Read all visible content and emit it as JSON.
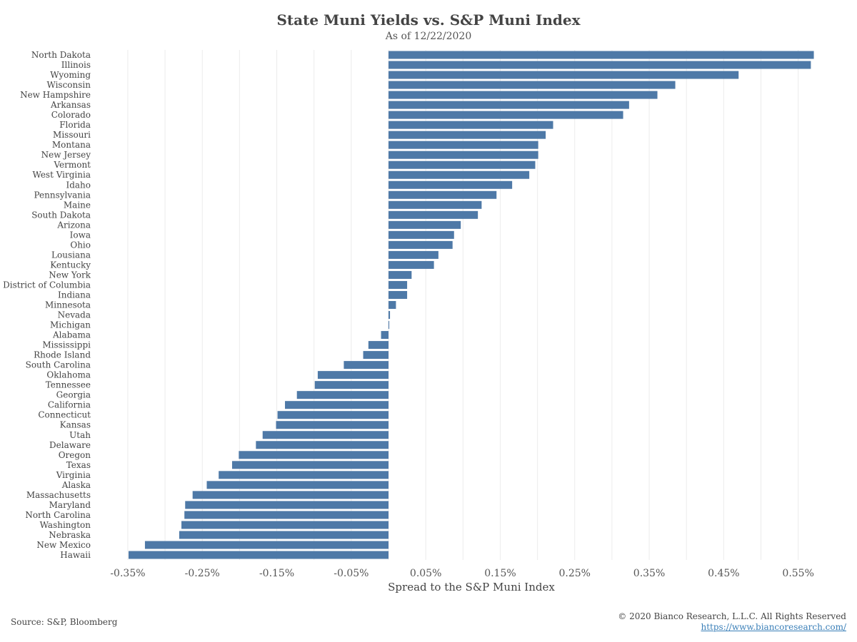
{
  "chart_data": {
    "type": "bar",
    "orientation": "horizontal",
    "title": "State Muni Yields vs. S&P Muni Index",
    "subtitle": "As of 12/22/2020",
    "xlabel": "Spread to the S&P Muni Index",
    "ylabel": "",
    "xlim": [
      -0.38,
      0.6
    ],
    "x_ticks": [
      -0.35,
      -0.25,
      -0.15,
      -0.05,
      0.05,
      0.15,
      0.25,
      0.35,
      0.45,
      0.55
    ],
    "x_tick_labels": [
      "-0.35%",
      "-0.25%",
      "-0.15%",
      "-0.05%",
      "0.05%",
      "0.15%",
      "0.25%",
      "0.35%",
      "0.45%",
      "0.55%"
    ],
    "grid": "vertical",
    "bar_color": "#4e79a7",
    "categories": [
      "North Dakota",
      "Illinois",
      "Wyoming",
      "Wisconsin",
      "New Hampshire",
      "Arkansas",
      "Colorado",
      "Florida",
      "Missouri",
      "Montana",
      "New Jersey",
      "Vermont",
      "West Virginia",
      "Idaho",
      "Pennsylvania",
      "Maine",
      "South Dakota",
      "Arizona",
      "Iowa",
      "Ohio",
      "Lousiana",
      "Kentucky",
      "New York",
      "District of Columbia",
      "Indiana",
      "Minnesota",
      "Nevada",
      "Michigan",
      "Alabama",
      "Mississippi",
      "Rhode Island",
      "South Carolina",
      "Oklahoma",
      "Tennessee",
      "Georgia",
      "California",
      "Connecticut",
      "Kansas",
      "Utah",
      "Delaware",
      "Oregon",
      "Texas",
      "Virginia",
      "Alaska",
      "Massachusetts",
      "Maryland",
      "North Carolina",
      "Washington",
      "Nebraska",
      "New Mexico",
      "Hawaii"
    ],
    "values": [
      0.571,
      0.567,
      0.47,
      0.385,
      0.361,
      0.323,
      0.315,
      0.221,
      0.211,
      0.201,
      0.201,
      0.197,
      0.189,
      0.166,
      0.145,
      0.125,
      0.12,
      0.097,
      0.088,
      0.086,
      0.067,
      0.061,
      0.031,
      0.025,
      0.025,
      0.01,
      0.002,
      0.001,
      -0.01,
      -0.027,
      -0.034,
      -0.06,
      -0.095,
      -0.099,
      -0.123,
      -0.139,
      -0.149,
      -0.151,
      -0.169,
      -0.178,
      -0.201,
      -0.21,
      -0.228,
      -0.244,
      -0.263,
      -0.273,
      -0.274,
      -0.278,
      -0.281,
      -0.327,
      -0.349
    ]
  },
  "footer": {
    "source": "Source: S&P, Bloomberg",
    "copyright": "© 2020 Bianco Research, L.L.C. All Rights Reserved",
    "url": "https://www.biancoresearch.com/"
  }
}
